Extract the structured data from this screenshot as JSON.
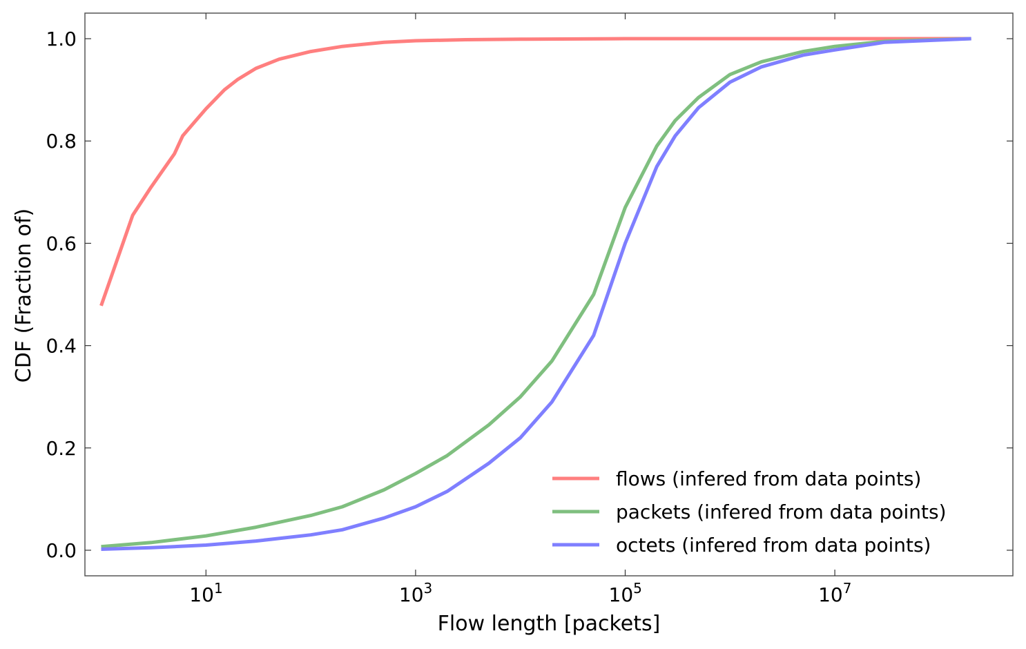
{
  "chart_data": {
    "type": "line",
    "xlabel": "Flow length [packets]",
    "ylabel": "CDF (Fraction of)",
    "xscale": "log",
    "xlim": [
      0.7,
      500000000
    ],
    "ylim": [
      -0.05,
      1.05
    ],
    "xticks": [
      {
        "value": 10,
        "base": "10",
        "exp": "1"
      },
      {
        "value": 1000,
        "base": "10",
        "exp": "3"
      },
      {
        "value": 100000,
        "base": "10",
        "exp": "5"
      },
      {
        "value": 10000000,
        "base": "10",
        "exp": "7"
      }
    ],
    "yticks": [
      {
        "value": 0.0,
        "label": "0.0"
      },
      {
        "value": 0.2,
        "label": "0.2"
      },
      {
        "value": 0.4,
        "label": "0.4"
      },
      {
        "value": 0.6,
        "label": "0.6"
      },
      {
        "value": 0.8,
        "label": "0.8"
      },
      {
        "value": 1.0,
        "label": "1.0"
      }
    ],
    "grid": false,
    "legend_position": "bottom-right",
    "series": [
      {
        "name": "flows (infered from data points)",
        "color": "#ff7f7f",
        "x": [
          1,
          2,
          3,
          5,
          6,
          8,
          10,
          15,
          20,
          30,
          50,
          100,
          200,
          500,
          1000,
          3000,
          10000,
          100000,
          1000000,
          10000000,
          200000000
        ],
        "y": [
          0.478,
          0.655,
          0.71,
          0.775,
          0.81,
          0.84,
          0.863,
          0.9,
          0.92,
          0.942,
          0.96,
          0.975,
          0.985,
          0.993,
          0.996,
          0.998,
          0.999,
          1.0,
          1.0,
          1.0,
          1.0
        ]
      },
      {
        "name": "packets (infered from data points)",
        "color": "#7fbf7f",
        "x": [
          1,
          3,
          10,
          30,
          100,
          200,
          500,
          1000,
          2000,
          5000,
          10000,
          20000,
          50000,
          100000,
          200000,
          300000,
          500000,
          1000000,
          2000000,
          5000000,
          10000000,
          30000000,
          200000000
        ],
        "y": [
          0.007,
          0.015,
          0.028,
          0.045,
          0.068,
          0.085,
          0.118,
          0.15,
          0.185,
          0.245,
          0.3,
          0.37,
          0.5,
          0.67,
          0.79,
          0.84,
          0.885,
          0.93,
          0.955,
          0.975,
          0.985,
          0.995,
          1.0
        ]
      },
      {
        "name": "octets (infered from data points)",
        "color": "#7f7fff",
        "x": [
          1,
          3,
          10,
          30,
          100,
          200,
          500,
          1000,
          2000,
          5000,
          10000,
          20000,
          50000,
          100000,
          200000,
          300000,
          500000,
          1000000,
          2000000,
          5000000,
          10000000,
          30000000,
          200000000
        ],
        "y": [
          0.002,
          0.005,
          0.01,
          0.018,
          0.03,
          0.04,
          0.063,
          0.085,
          0.115,
          0.17,
          0.22,
          0.29,
          0.42,
          0.6,
          0.75,
          0.81,
          0.865,
          0.915,
          0.945,
          0.968,
          0.978,
          0.993,
          1.0
        ]
      }
    ]
  }
}
